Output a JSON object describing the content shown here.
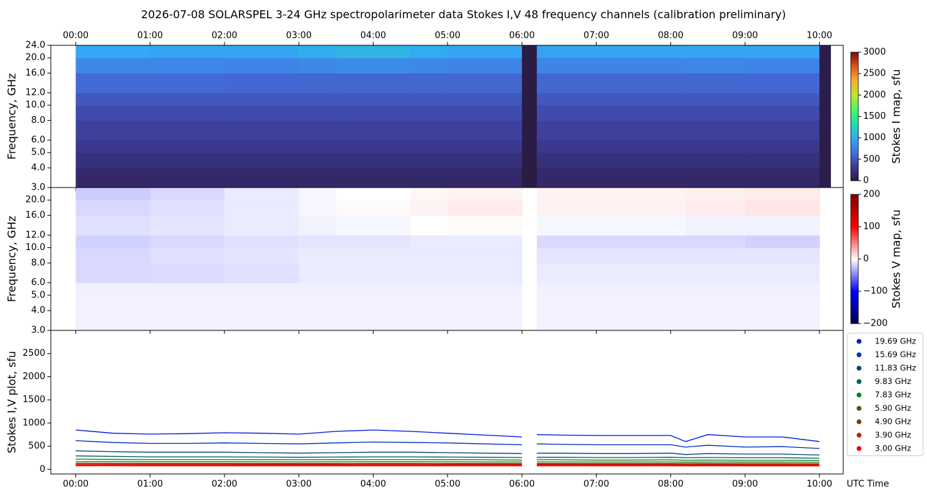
{
  "chart_data": [
    {
      "type": "heatmap",
      "title": "2026-07-08  SOLARSPEL  3-24 GHz spectropolarimeter data   Stokes I,V   48 frequency channels   (calibration preliminary)",
      "ylabel": "Frequency, GHz",
      "yscale": "log",
      "xlim": [
        -0.335,
        10.32
      ],
      "ylim": [
        3,
        24
      ],
      "xticks": [
        {
          "value": 0,
          "label": "00:00"
        },
        {
          "value": 1,
          "label": "01:00"
        },
        {
          "value": 2,
          "label": "02:00"
        },
        {
          "value": 3,
          "label": "03:00"
        },
        {
          "value": 4,
          "label": "04:00"
        },
        {
          "value": 5,
          "label": "05:00"
        },
        {
          "value": 6,
          "label": "06:00"
        },
        {
          "value": 7,
          "label": "07:00"
        },
        {
          "value": 8,
          "label": "08:00"
        },
        {
          "value": 9,
          "label": "09:00"
        },
        {
          "value": 10,
          "label": "10:00"
        }
      ],
      "yticks": [
        {
          "value": 3,
          "label": "3.0"
        },
        {
          "value": 4,
          "label": "4.0"
        },
        {
          "value": 5,
          "label": "5.0"
        },
        {
          "value": 6,
          "label": "6.0"
        },
        {
          "value": 8,
          "label": "8.0"
        },
        {
          "value": 10,
          "label": "10.0"
        },
        {
          "value": 12,
          "label": "12.0"
        },
        {
          "value": 16,
          "label": "16.0"
        },
        {
          "value": 20,
          "label": "20.0"
        },
        {
          "value": 24,
          "label": "24.0"
        }
      ],
      "x_edges": [
        0,
        1,
        2,
        3,
        3.5,
        4.5,
        5,
        6.0,
        6.2,
        8.2,
        9,
        10.0,
        10.15
      ],
      "y_edges": [
        3,
        4,
        5,
        6,
        8,
        10,
        12,
        16,
        20,
        24
      ],
      "z": [
        [
          160,
          160,
          160,
          160,
          160,
          160,
          160,
          20,
          160,
          160,
          160,
          40
        ],
        [
          230,
          230,
          230,
          230,
          230,
          230,
          230,
          20,
          230,
          230,
          230,
          40
        ],
        [
          300,
          300,
          300,
          300,
          300,
          300,
          300,
          20,
          300,
          300,
          300,
          40
        ],
        [
          370,
          370,
          370,
          370,
          370,
          370,
          370,
          20,
          370,
          370,
          370,
          40
        ],
        [
          440,
          440,
          440,
          440,
          440,
          440,
          440,
          20,
          440,
          440,
          440,
          40
        ],
        [
          510,
          510,
          510,
          510,
          510,
          510,
          510,
          20,
          510,
          510,
          510,
          40
        ],
        [
          620,
          620,
          610,
          600,
          600,
          600,
          600,
          20,
          600,
          600,
          610,
          40
        ],
        [
          800,
          790,
          780,
          800,
          820,
          800,
          780,
          20,
          780,
          790,
          780,
          40
        ],
        [
          1000,
          980,
          980,
          1030,
          1080,
          1020,
          980,
          20,
          970,
          980,
          960,
          40
        ]
      ],
      "colorbar": {
        "label": "Stokes I map, sfu",
        "lim": [
          0,
          3000
        ],
        "ticks": [
          0,
          500,
          1000,
          1500,
          2000,
          2500,
          3000
        ],
        "colormap": [
          "#2a1a40",
          "#3d3a94",
          "#4472e0",
          "#34a8f4",
          "#1ee0b0",
          "#48f860",
          "#b8e830",
          "#f8b030",
          "#e05818",
          "#7a0808"
        ]
      }
    },
    {
      "type": "heatmap",
      "ylabel": "Frequency, GHz",
      "yscale": "log",
      "xlim": [
        -0.335,
        10.32
      ],
      "ylim": [
        3,
        24
      ],
      "yticks": [
        {
          "value": 3,
          "label": "3.0"
        },
        {
          "value": 4,
          "label": "4.0"
        },
        {
          "value": 5,
          "label": "5.0"
        },
        {
          "value": 6,
          "label": "6.0"
        },
        {
          "value": 8,
          "label": "8.0"
        },
        {
          "value": 10,
          "label": "10.0"
        },
        {
          "value": 12,
          "label": "12.0"
        },
        {
          "value": 16,
          "label": "16.0"
        },
        {
          "value": 20,
          "label": "20.0"
        }
      ],
      "x_edges": [
        0,
        1,
        2,
        3,
        3.5,
        4.5,
        5,
        6.0,
        6.2,
        8.2,
        9,
        10.0,
        10.15
      ],
      "y_edges": [
        3,
        4,
        5,
        6,
        8,
        10,
        12,
        16,
        20,
        24
      ],
      "z": [
        [
          -5,
          -5,
          -5,
          -5,
          -5,
          -5,
          -5,
          null,
          -5,
          -5,
          -5,
          null
        ],
        [
          -5,
          -5,
          -5,
          -5,
          -5,
          -5,
          -5,
          null,
          -5,
          -5,
          -5,
          null
        ],
        [
          -6,
          -6,
          -6,
          -6,
          -6,
          -6,
          -6,
          null,
          -6,
          -6,
          -6,
          null
        ],
        [
          -15,
          -14,
          -12,
          -8,
          -8,
          -8,
          -8,
          null,
          -8,
          -8,
          -8,
          null
        ],
        [
          -15,
          -12,
          -10,
          -8,
          -8,
          -8,
          -8,
          null,
          -10,
          -10,
          -10,
          null
        ],
        [
          -18,
          -15,
          -12,
          -10,
          -10,
          -8,
          -8,
          null,
          -15,
          -15,
          -18,
          null
        ],
        [
          -12,
          -10,
          -8,
          -5,
          -3,
          0,
          2,
          null,
          -3,
          -5,
          -5,
          null
        ],
        [
          -15,
          -12,
          -8,
          -3,
          2,
          5,
          8,
          null,
          5,
          8,
          10,
          null
        ],
        [
          -20,
          -15,
          -8,
          -3,
          0,
          3,
          5,
          null,
          5,
          6,
          8,
          null
        ]
      ],
      "colorbar": {
        "label": "Stokes V map, sfu",
        "lim": [
          -200,
          200
        ],
        "ticks": [
          {
            "value": -200,
            "label": "−200"
          },
          {
            "value": -100,
            "label": "−100"
          },
          0,
          100,
          200
        ],
        "colormap": [
          "#00004c",
          "#0000ff",
          "#ffffff",
          "#ff0000",
          "#7f0000"
        ]
      }
    },
    {
      "type": "line",
      "ylabel": "Stokes I,V plot, sfu",
      "xlabel": "UTC Time",
      "xlim": [
        -0.335,
        10.32
      ],
      "ylim": [
        -100,
        3000
      ],
      "xticks": [
        {
          "value": 0,
          "label": "00:00"
        },
        {
          "value": 1,
          "label": "01:00"
        },
        {
          "value": 2,
          "label": "02:00"
        },
        {
          "value": 3,
          "label": "03:00"
        },
        {
          "value": 4,
          "label": "04:00"
        },
        {
          "value": 5,
          "label": "05:00"
        },
        {
          "value": 6,
          "label": "06:00"
        },
        {
          "value": 7,
          "label": "07:00"
        },
        {
          "value": 8,
          "label": "08:00"
        },
        {
          "value": 9,
          "label": "09:00"
        },
        {
          "value": 10,
          "label": "10:00"
        }
      ],
      "yticks": [
        0,
        500,
        1000,
        1500,
        2000,
        2500
      ],
      "legend": "outside right",
      "x": [
        0,
        0.5,
        1,
        1.5,
        2,
        2.5,
        3,
        3.5,
        4,
        4.5,
        5,
        5.5,
        6.0,
        6.1,
        6.2,
        6.5,
        7,
        7.5,
        8,
        8.2,
        8.5,
        9,
        9.5,
        10.0
      ],
      "series": [
        {
          "name": "19.69 GHz",
          "color": "#0018d8",
          "values": [
            850,
            780,
            760,
            770,
            790,
            780,
            760,
            820,
            850,
            820,
            780,
            740,
            700,
            null,
            750,
            740,
            730,
            730,
            730,
            600,
            750,
            700,
            700,
            600
          ]
        },
        {
          "name": "15.69 GHz",
          "color": "#0030b8",
          "values": [
            620,
            580,
            560,
            560,
            570,
            560,
            550,
            570,
            590,
            580,
            570,
            550,
            530,
            null,
            550,
            540,
            530,
            530,
            530,
            480,
            520,
            480,
            490,
            450
          ]
        },
        {
          "name": "11.83 GHz",
          "color": "#004878",
          "values": [
            400,
            380,
            370,
            370,
            370,
            360,
            350,
            360,
            370,
            370,
            360,
            350,
            340,
            null,
            350,
            350,
            340,
            340,
            350,
            320,
            340,
            330,
            330,
            310
          ]
        },
        {
          "name": "9.83 GHz",
          "color": "#006050",
          "values": [
            290,
            280,
            270,
            270,
            270,
            265,
            260,
            265,
            270,
            270,
            265,
            260,
            255,
            null,
            260,
            260,
            255,
            255,
            260,
            250,
            255,
            250,
            250,
            240
          ]
        },
        {
          "name": "7.83 GHz",
          "color": "#008020",
          "values": [
            220,
            215,
            210,
            210,
            210,
            208,
            205,
            208,
            210,
            210,
            208,
            205,
            200,
            null,
            205,
            205,
            200,
            200,
            205,
            195,
            200,
            195,
            195,
            190
          ]
        },
        {
          "name": "5.90 GHz",
          "color": "#406000",
          "values": [
            165,
            163,
            162,
            162,
            162,
            161,
            160,
            161,
            162,
            162,
            161,
            160,
            158,
            null,
            160,
            160,
            158,
            158,
            160,
            155,
            158,
            156,
            156,
            152
          ]
        },
        {
          "name": "4.90 GHz",
          "color": "#704000",
          "values": [
            130,
            128,
            127,
            127,
            127,
            126,
            125,
            126,
            127,
            127,
            126,
            125,
            124,
            null,
            125,
            125,
            124,
            124,
            125,
            122,
            124,
            123,
            123,
            120
          ]
        },
        {
          "name": "3.90 GHz",
          "color": "#c02000",
          "values": [
            108,
            107,
            106,
            106,
            106,
            105,
            105,
            105,
            106,
            106,
            105,
            105,
            104,
            null,
            105,
            105,
            104,
            104,
            105,
            103,
            104,
            103,
            103,
            101
          ]
        },
        {
          "name": "3.00 GHz",
          "color": "#f00000",
          "values": [
            92,
            91,
            90,
            90,
            90,
            90,
            89,
            90,
            90,
            90,
            90,
            89,
            88,
            null,
            89,
            89,
            88,
            88,
            89,
            87,
            88,
            87,
            87,
            85
          ]
        }
      ]
    }
  ]
}
